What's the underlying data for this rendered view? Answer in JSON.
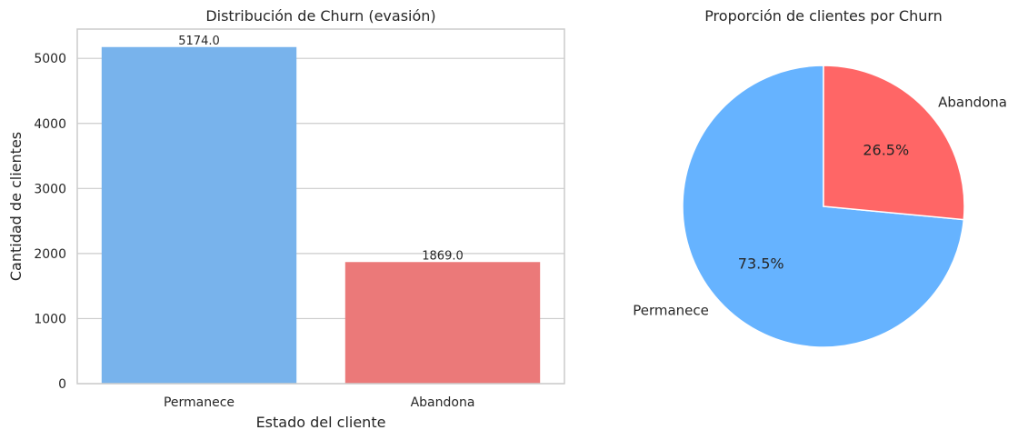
{
  "chart_data": [
    {
      "type": "bar",
      "title": "Distribución de Churn (evasión)",
      "xlabel": "Estado del cliente",
      "ylabel": "Cantidad de clientes",
      "categories": [
        "Permanece",
        "Abandona"
      ],
      "values": [
        5174,
        1869
      ],
      "data_labels": [
        "5174.0",
        "1869.0"
      ],
      "ylim": [
        0,
        5450
      ],
      "yticks": [
        0,
        1000,
        2000,
        3000,
        4000,
        5000
      ],
      "colors": [
        "#78B3EC",
        "#EB7979"
      ],
      "grid": true
    },
    {
      "type": "pie",
      "title": "Proporción de clientes por Churn",
      "labels": [
        "Permanece",
        "Abandona"
      ],
      "values": [
        73.5,
        26.5
      ],
      "pct_labels": [
        "73.5%",
        "26.5%"
      ],
      "colors": [
        "#66B3FF",
        "#FF6666"
      ],
      "start_angle": 90
    }
  ]
}
